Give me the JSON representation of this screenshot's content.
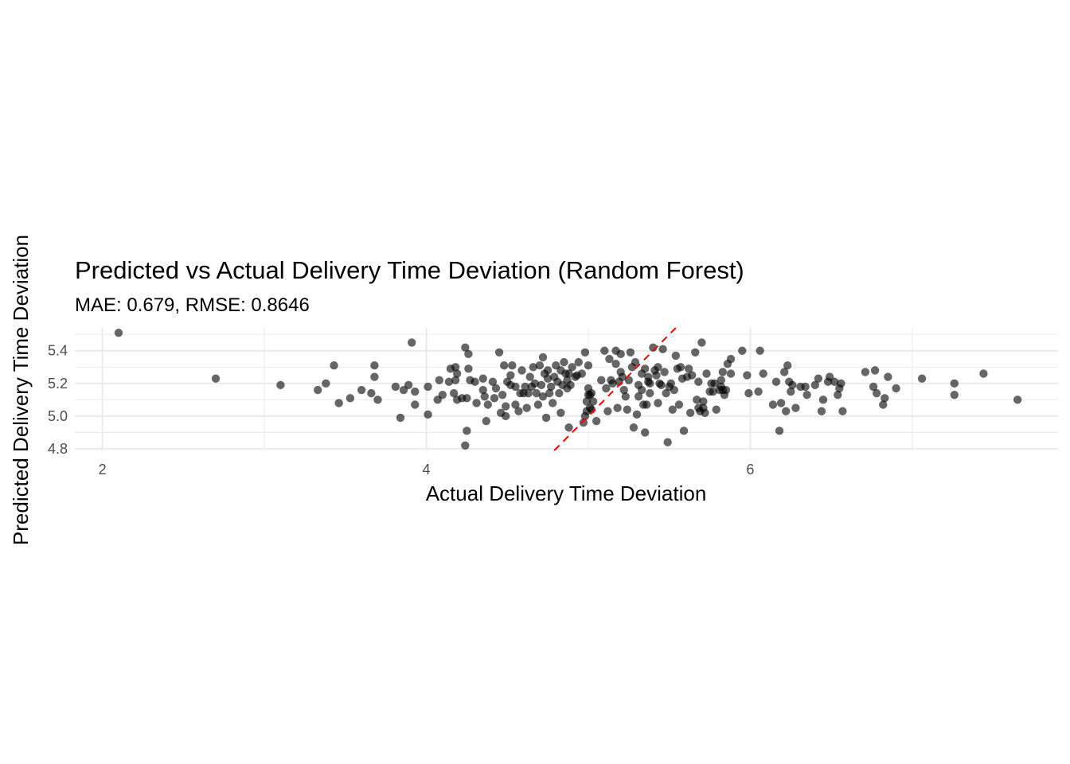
{
  "chart_data": {
    "type": "scatter",
    "title": "Predicted vs Actual Delivery Time Deviation (Random Forest)",
    "subtitle": "MAE: 0.679, RMSE: 0.8646",
    "xlabel": "Actual Delivery Time Deviation",
    "ylabel": "Predicted Delivery Time Deviation",
    "xlim": [
      1.83,
      7.9
    ],
    "ylim": [
      4.79,
      5.54
    ],
    "x_ticks": [
      2,
      4,
      6
    ],
    "x_tick_labels": [
      "2",
      "4",
      "6"
    ],
    "y_ticks": [
      4.8,
      5.0,
      5.2,
      5.4
    ],
    "y_tick_labels": [
      "4.8",
      "5.0",
      "5.2",
      "5.4"
    ],
    "grid": true,
    "point_color": "#000000",
    "point_opacity": 0.6,
    "reference_line": {
      "type": "identity",
      "style": "dashed",
      "color": "#ff0000"
    },
    "points": [
      [
        2.1,
        5.51
      ],
      [
        2.7,
        5.23
      ],
      [
        3.1,
        5.19
      ],
      [
        3.33,
        5.16
      ],
      [
        3.38,
        5.2
      ],
      [
        3.43,
        5.31
      ],
      [
        3.46,
        5.08
      ],
      [
        3.53,
        5.11
      ],
      [
        3.6,
        5.16
      ],
      [
        3.66,
        5.14
      ],
      [
        3.68,
        5.24
      ],
      [
        3.68,
        5.31
      ],
      [
        3.7,
        5.1
      ],
      [
        3.81,
        5.18
      ],
      [
        3.84,
        4.99
      ],
      [
        3.86,
        5.16
      ],
      [
        3.89,
        5.19
      ],
      [
        3.91,
        5.45
      ],
      [
        3.93,
        5.07
      ],
      [
        3.93,
        5.15
      ],
      [
        4.01,
        5.18
      ],
      [
        4.01,
        5.01
      ],
      [
        4.07,
        5.1
      ],
      [
        4.08,
        5.22
      ],
      [
        4.1,
        5.13
      ],
      [
        4.14,
        5.21
      ],
      [
        4.15,
        5.29
      ],
      [
        4.17,
        5.14
      ],
      [
        4.18,
        5.22
      ],
      [
        4.18,
        5.3
      ],
      [
        4.19,
        5.26
      ],
      [
        4.19,
        5.1
      ],
      [
        4.22,
        5.11
      ],
      [
        4.24,
        4.82
      ],
      [
        4.24,
        5.42
      ],
      [
        4.25,
        5.11
      ],
      [
        4.25,
        4.91
      ],
      [
        4.26,
        5.38
      ],
      [
        4.26,
        5.29
      ],
      [
        4.27,
        5.22
      ],
      [
        4.3,
        5.21
      ],
      [
        4.31,
        5.08
      ],
      [
        4.35,
        5.23
      ],
      [
        4.35,
        5.16
      ],
      [
        4.36,
        5.12
      ],
      [
        4.37,
        4.97
      ],
      [
        4.38,
        5.07
      ],
      [
        4.41,
        5.21
      ],
      [
        4.42,
        5.11
      ],
      [
        4.43,
        5.17
      ],
      [
        4.45,
        5.39
      ],
      [
        4.46,
        5.02
      ],
      [
        4.47,
        5.13
      ],
      [
        4.48,
        5.31
      ],
      [
        4.49,
        5.0
      ],
      [
        4.49,
        5.06
      ],
      [
        4.5,
        5.21
      ],
      [
        4.52,
        5.25
      ],
      [
        4.52,
        5.19
      ],
      [
        4.53,
        5.31
      ],
      [
        4.55,
        5.07
      ],
      [
        4.55,
        5.18
      ],
      [
        4.57,
        5.03
      ],
      [
        4.58,
        5.14
      ],
      [
        4.59,
        5.28
      ],
      [
        4.6,
        5.14
      ],
      [
        4.61,
        5.18
      ],
      [
        4.62,
        5.05
      ],
      [
        4.63,
        5.14
      ],
      [
        4.64,
        5.24
      ],
      [
        4.65,
        5.18
      ],
      [
        4.66,
        5.3
      ],
      [
        4.67,
        5.2
      ],
      [
        4.68,
        5.14
      ],
      [
        4.69,
        5.07
      ],
      [
        4.7,
        5.31
      ],
      [
        4.71,
        5.19
      ],
      [
        4.72,
        5.36
      ],
      [
        4.72,
        5.12
      ],
      [
        4.73,
        5.26
      ],
      [
        4.74,
        4.99
      ],
      [
        4.75,
        5.23
      ],
      [
        4.75,
        5.28
      ],
      [
        4.76,
        5.14
      ],
      [
        4.77,
        5.18
      ],
      [
        4.78,
        5.08
      ],
      [
        4.79,
        5.24
      ],
      [
        4.8,
        5.31
      ],
      [
        4.81,
        5.21
      ],
      [
        4.82,
        5.14
      ],
      [
        4.83,
        5.28
      ],
      [
        4.83,
        5.02
      ],
      [
        4.84,
        5.19
      ],
      [
        4.85,
        5.33
      ],
      [
        4.86,
        5.26
      ],
      [
        4.87,
        5.22
      ],
      [
        4.87,
        5.17
      ],
      [
        4.88,
        5.26
      ],
      [
        4.88,
        4.93
      ],
      [
        4.89,
        5.19
      ],
      [
        4.9,
        5.3
      ],
      [
        4.92,
        5.24
      ],
      [
        4.93,
        5.25
      ],
      [
        4.94,
        5.33
      ],
      [
        4.96,
        5.26
      ],
      [
        4.97,
        4.96
      ],
      [
        4.98,
        5.39
      ],
      [
        4.98,
        5.0
      ],
      [
        4.99,
        5.03
      ],
      [
        4.99,
        5.09
      ],
      [
        5.0,
        5.13
      ],
      [
        5.0,
        5.17
      ],
      [
        5.0,
        5.31
      ],
      [
        5.01,
        5.13
      ],
      [
        5.01,
        5.05
      ],
      [
        5.02,
        5.14
      ],
      [
        5.02,
        5.04
      ],
      [
        5.03,
        5.09
      ],
      [
        5.05,
        4.97
      ],
      [
        5.08,
        5.22
      ],
      [
        5.1,
        5.4
      ],
      [
        5.11,
        5.17
      ],
      [
        5.12,
        5.03
      ],
      [
        5.13,
        5.35
      ],
      [
        5.14,
        5.22
      ],
      [
        5.15,
        5.2
      ],
      [
        5.17,
        5.4
      ],
      [
        5.17,
        5.32
      ],
      [
        5.18,
        5.05
      ],
      [
        5.19,
        5.21
      ],
      [
        5.2,
        5.38
      ],
      [
        5.2,
        5.27
      ],
      [
        5.21,
        5.24
      ],
      [
        5.22,
        5.16
      ],
      [
        5.23,
        5.12
      ],
      [
        5.24,
        5.04
      ],
      [
        5.25,
        5.22
      ],
      [
        5.26,
        5.39
      ],
      [
        5.27,
        5.3
      ],
      [
        5.28,
        4.93
      ],
      [
        5.29,
        5.33
      ],
      [
        5.3,
        5.01
      ],
      [
        5.31,
        5.19
      ],
      [
        5.31,
        5.12
      ],
      [
        5.33,
        5.26
      ],
      [
        5.33,
        5.16
      ],
      [
        5.34,
        5.07
      ],
      [
        5.35,
        4.9
      ],
      [
        5.35,
        5.29
      ],
      [
        5.36,
        5.07
      ],
      [
        5.37,
        5.24
      ],
      [
        5.37,
        5.21
      ],
      [
        5.38,
        5.14
      ],
      [
        5.38,
        5.2
      ],
      [
        5.4,
        5.42
      ],
      [
        5.41,
        5.28
      ],
      [
        5.42,
        5.25
      ],
      [
        5.43,
        5.08
      ],
      [
        5.43,
        5.3
      ],
      [
        5.44,
        5.2
      ],
      [
        5.45,
        5.19
      ],
      [
        5.46,
        5.41
      ],
      [
        5.47,
        5.27
      ],
      [
        5.48,
        5.14
      ],
      [
        5.49,
        4.84
      ],
      [
        5.5,
        5.18
      ],
      [
        5.51,
        5.2
      ],
      [
        5.52,
        5.04
      ],
      [
        5.53,
        5.16
      ],
      [
        5.54,
        5.37
      ],
      [
        5.55,
        5.29
      ],
      [
        5.56,
        5.07
      ],
      [
        5.57,
        5.3
      ],
      [
        5.58,
        5.23
      ],
      [
        5.59,
        4.91
      ],
      [
        5.61,
        5.24
      ],
      [
        5.62,
        5.29
      ],
      [
        5.63,
        5.02
      ],
      [
        5.64,
        5.25
      ],
      [
        5.66,
        5.39
      ],
      [
        5.67,
        5.1
      ],
      [
        5.68,
        5.05
      ],
      [
        5.68,
        5.21
      ],
      [
        5.69,
        5.03
      ],
      [
        5.7,
        5.45
      ],
      [
        5.71,
        5.09
      ],
      [
        5.71,
        5.05
      ],
      [
        5.72,
        5.02
      ],
      [
        5.73,
        5.26
      ],
      [
        5.75,
        5.15
      ],
      [
        5.76,
        5.2
      ],
      [
        5.77,
        5.15
      ],
      [
        5.78,
        5.2
      ],
      [
        5.79,
        5.04
      ],
      [
        5.81,
        5.16
      ],
      [
        5.82,
        5.18
      ],
      [
        5.82,
        5.22
      ],
      [
        5.83,
        5.16
      ],
      [
        5.83,
        5.27
      ],
      [
        5.84,
        5.13
      ],
      [
        5.85,
        5.16
      ],
      [
        5.86,
        5.32
      ],
      [
        5.88,
        5.35
      ],
      [
        5.88,
        5.26
      ],
      [
        5.95,
        5.4
      ],
      [
        5.98,
        5.25
      ],
      [
        5.99,
        5.14
      ],
      [
        6.05,
        5.15
      ],
      [
        6.06,
        5.4
      ],
      [
        6.08,
        5.26
      ],
      [
        6.14,
        5.07
      ],
      [
        6.16,
        5.21
      ],
      [
        6.18,
        4.91
      ],
      [
        6.19,
        5.08
      ],
      [
        6.21,
        5.27
      ],
      [
        6.22,
        5.03
      ],
      [
        6.23,
        5.31
      ],
      [
        6.24,
        5.21
      ],
      [
        6.25,
        5.15
      ],
      [
        6.26,
        5.19
      ],
      [
        6.28,
        5.05
      ],
      [
        6.31,
        5.18
      ],
      [
        6.34,
        5.18
      ],
      [
        6.35,
        5.13
      ],
      [
        6.4,
        5.19
      ],
      [
        6.42,
        5.23
      ],
      [
        6.44,
        5.03
      ],
      [
        6.45,
        5.1
      ],
      [
        6.48,
        5.21
      ],
      [
        6.49,
        5.24
      ],
      [
        6.52,
        5.21
      ],
      [
        6.54,
        5.13
      ],
      [
        6.55,
        5.17
      ],
      [
        6.56,
        5.2
      ],
      [
        6.57,
        5.03
      ],
      [
        6.71,
        5.27
      ],
      [
        6.76,
        5.18
      ],
      [
        6.77,
        5.28
      ],
      [
        6.78,
        5.14
      ],
      [
        6.82,
        5.07
      ],
      [
        6.83,
        5.11
      ],
      [
        6.85,
        5.24
      ],
      [
        6.9,
        5.17
      ],
      [
        7.06,
        5.23
      ],
      [
        7.26,
        5.2
      ],
      [
        7.26,
        5.13
      ],
      [
        7.44,
        5.26
      ],
      [
        7.65,
        5.1
      ]
    ]
  }
}
